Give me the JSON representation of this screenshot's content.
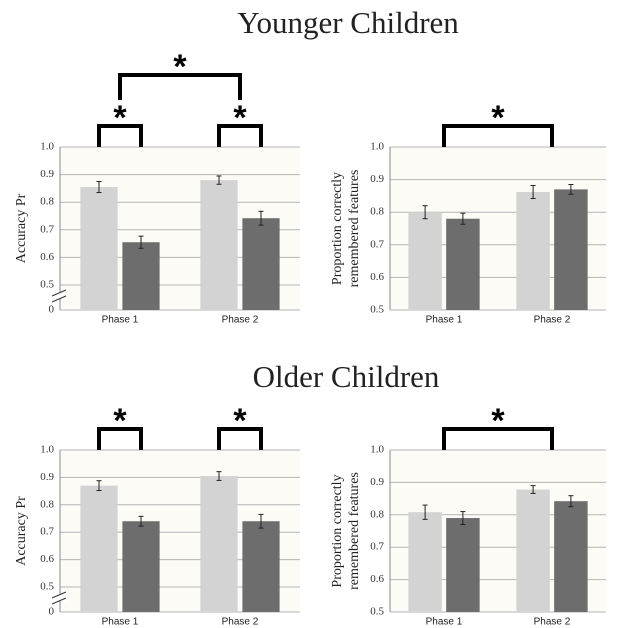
{
  "headings": [
    "Younger Children",
    "Older Children"
  ],
  "chart_data": [
    {
      "type": "bar",
      "ylabel": [
        "Accuracy Pr"
      ],
      "categories": [
        "Phase 1",
        "Phase 2"
      ],
      "series": [
        {
          "color": "#d3d3d3",
          "values": [
            0.855,
            0.88
          ],
          "errors": [
            0.02,
            0.015
          ]
        },
        {
          "color": "#6d6d6d",
          "values": [
            0.655,
            0.742
          ],
          "errors": [
            0.022,
            0.025
          ]
        }
      ],
      "ylim": [
        0,
        1
      ],
      "yticks": [
        0,
        0.5,
        0.6,
        0.7,
        0.8,
        0.9,
        {
          "value": 1,
          "label": "1.0"
        }
      ],
      "broken_axis": true,
      "grid": true,
      "brackets": [
        {
          "label": "*",
          "span": [
            "Phase 1"
          ]
        },
        {
          "label": "*",
          "span": [
            "Phase 2"
          ]
        },
        {
          "label": "*",
          "span": [
            "Phase 1",
            "Phase 2"
          ]
        }
      ]
    },
    {
      "type": "bar",
      "ylabel": [
        "Proportion correctly",
        "remembered features"
      ],
      "categories": [
        "Phase 1",
        "Phase 2"
      ],
      "series": [
        {
          "color": "#d3d3d3",
          "values": [
            0.8,
            0.862
          ],
          "errors": [
            0.02,
            0.02
          ]
        },
        {
          "color": "#6d6d6d",
          "values": [
            0.78,
            0.87
          ],
          "errors": [
            0.017,
            0.015
          ]
        }
      ],
      "ylim": [
        0.5,
        1
      ],
      "yticks": [
        0.5,
        0.6,
        0.7,
        0.8,
        0.9,
        {
          "value": 1,
          "label": "1.0"
        }
      ],
      "broken_axis": false,
      "grid": true,
      "brackets": [
        {
          "label": "*",
          "span": [
            "Phase 1",
            "Phase 2"
          ]
        }
      ]
    },
    {
      "type": "bar",
      "ylabel": [
        "Accuracy Pr"
      ],
      "categories": [
        "Phase 1",
        "Phase 2"
      ],
      "series": [
        {
          "color": "#d3d3d3",
          "values": [
            0.87,
            0.905
          ],
          "errors": [
            0.018,
            0.016
          ]
        },
        {
          "color": "#6d6d6d",
          "values": [
            0.74,
            0.74
          ],
          "errors": [
            0.018,
            0.025
          ]
        }
      ],
      "ylim": [
        0,
        1
      ],
      "yticks": [
        0,
        0.5,
        0.6,
        0.7,
        0.8,
        0.9,
        {
          "value": 1,
          "label": "1.0"
        }
      ],
      "broken_axis": true,
      "grid": true,
      "brackets": [
        {
          "label": "*",
          "span": [
            "Phase 1"
          ]
        },
        {
          "label": "*",
          "span": [
            "Phase 2"
          ]
        }
      ]
    },
    {
      "type": "bar",
      "ylabel": [
        "Proportion correctly",
        "remembered features"
      ],
      "categories": [
        "Phase 1",
        "Phase 2"
      ],
      "series": [
        {
          "color": "#d3d3d3",
          "values": [
            0.808,
            0.878
          ],
          "errors": [
            0.022,
            0.012
          ]
        },
        {
          "color": "#6d6d6d",
          "values": [
            0.79,
            0.842
          ],
          "errors": [
            0.02,
            0.017
          ]
        }
      ],
      "ylim": [
        0.5,
        1
      ],
      "yticks": [
        0.5,
        0.6,
        0.7,
        0.8,
        0.9,
        {
          "value": 1,
          "label": "1.0"
        }
      ],
      "broken_axis": false,
      "grid": true,
      "brackets": [
        {
          "label": "*",
          "span": [
            "Phase 1",
            "Phase 2"
          ]
        }
      ]
    }
  ]
}
